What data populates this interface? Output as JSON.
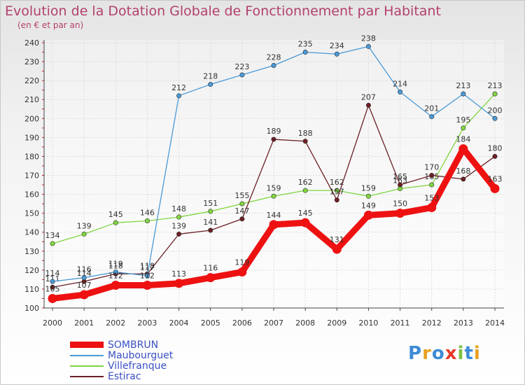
{
  "header": {
    "title": "Evolution de la Dotation Globale de Fonctionnement par Habitant",
    "subtitle": "(en € et par an)"
  },
  "logo": {
    "text": "Proxiti",
    "letters": [
      {
        "ch": "P",
        "color": "#3d8bd6"
      },
      {
        "ch": "r",
        "color": "#e8a020"
      },
      {
        "ch": "o",
        "color": "#3d8bd6"
      },
      {
        "ch": "x",
        "color": "#e63a2a"
      },
      {
        "ch": "i",
        "color": "#7ac143"
      },
      {
        "ch": "t",
        "color": "#3d8bd6"
      },
      {
        "ch": "i",
        "color": "#e8a020"
      }
    ]
  },
  "chart_data": {
    "type": "line",
    "title": "Evolution de la Dotation Globale de Fonctionnement par Habitant",
    "subtitle": "(en € et par an)",
    "x": [
      2000,
      2001,
      2002,
      2003,
      2004,
      2005,
      2006,
      2007,
      2008,
      2009,
      2010,
      2011,
      2012,
      2013,
      2014
    ],
    "ylim": [
      100,
      240
    ],
    "yticks": [
      100,
      110,
      120,
      130,
      140,
      150,
      160,
      170,
      180,
      190,
      200,
      210,
      220,
      230,
      240
    ],
    "grid": true,
    "legend_position": "bottom-left",
    "series": [
      {
        "name": "Villefranque",
        "color": "#7fd63f",
        "values": [
          134,
          139,
          145,
          146,
          148,
          151,
          155,
          159,
          162,
          162,
          159,
          163,
          165,
          195,
          213
        ]
      },
      {
        "name": "Estirac",
        "color": "#6b1f24",
        "values": [
          111,
          114,
          118,
          118,
          139,
          141,
          147,
          189,
          188,
          157,
          207,
          165,
          170,
          168,
          180
        ]
      },
      {
        "name": "Maubourguet",
        "color": "#4a9ad6",
        "values": [
          114,
          116,
          119,
          117,
          212,
          218,
          223,
          228,
          235,
          234,
          238,
          214,
          201,
          213,
          200
        ]
      },
      {
        "name": "SOMBRUN",
        "color": "#ee1111",
        "values": [
          105,
          107,
          112,
          112,
          113,
          116,
          119,
          144,
          145,
          131,
          149,
          150,
          153,
          184,
          163
        ]
      }
    ]
  },
  "legend": [
    {
      "name": "SOMBRUN",
      "color": "#ee1111",
      "thickness": 9
    },
    {
      "name": "Maubourguet",
      "color": "#4a9ad6",
      "thickness": 2
    },
    {
      "name": "Villefranque",
      "color": "#7fd63f",
      "thickness": 2
    },
    {
      "name": "Estirac",
      "color": "#6b1f24",
      "thickness": 2
    }
  ]
}
